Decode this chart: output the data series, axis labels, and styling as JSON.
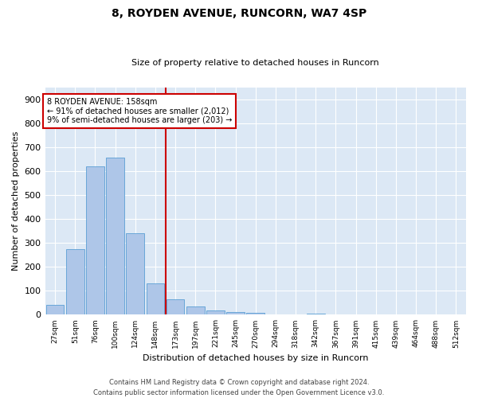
{
  "title1": "8, ROYDEN AVENUE, RUNCORN, WA7 4SP",
  "title2": "Size of property relative to detached houses in Runcorn",
  "xlabel": "Distribution of detached houses by size in Runcorn",
  "ylabel": "Number of detached properties",
  "categories": [
    "27sqm",
    "51sqm",
    "76sqm",
    "100sqm",
    "124sqm",
    "148sqm",
    "173sqm",
    "197sqm",
    "221sqm",
    "245sqm",
    "270sqm",
    "294sqm",
    "318sqm",
    "342sqm",
    "367sqm",
    "391sqm",
    "415sqm",
    "439sqm",
    "464sqm",
    "488sqm",
    "512sqm"
  ],
  "values": [
    40,
    275,
    620,
    655,
    340,
    130,
    65,
    35,
    18,
    10,
    7,
    1,
    0,
    5,
    0,
    0,
    0,
    0,
    0,
    0,
    0
  ],
  "bar_color": "#aec6e8",
  "bar_edge_color": "#5a9fd4",
  "vline_color": "#cc0000",
  "vline_pos": 5.5,
  "annotation_text": "8 ROYDEN AVENUE: 158sqm\n← 91% of detached houses are smaller (2,012)\n9% of semi-detached houses are larger (203) →",
  "annotation_box_color": "#cc0000",
  "bg_color": "#dce8f5",
  "footer": "Contains HM Land Registry data © Crown copyright and database right 2024.\nContains public sector information licensed under the Open Government Licence v3.0.",
  "ylim": [
    0,
    950
  ],
  "yticks": [
    0,
    100,
    200,
    300,
    400,
    500,
    600,
    700,
    800,
    900
  ],
  "title1_fontsize": 10,
  "title2_fontsize": 8,
  "ylabel_fontsize": 8,
  "xlabel_fontsize": 8
}
